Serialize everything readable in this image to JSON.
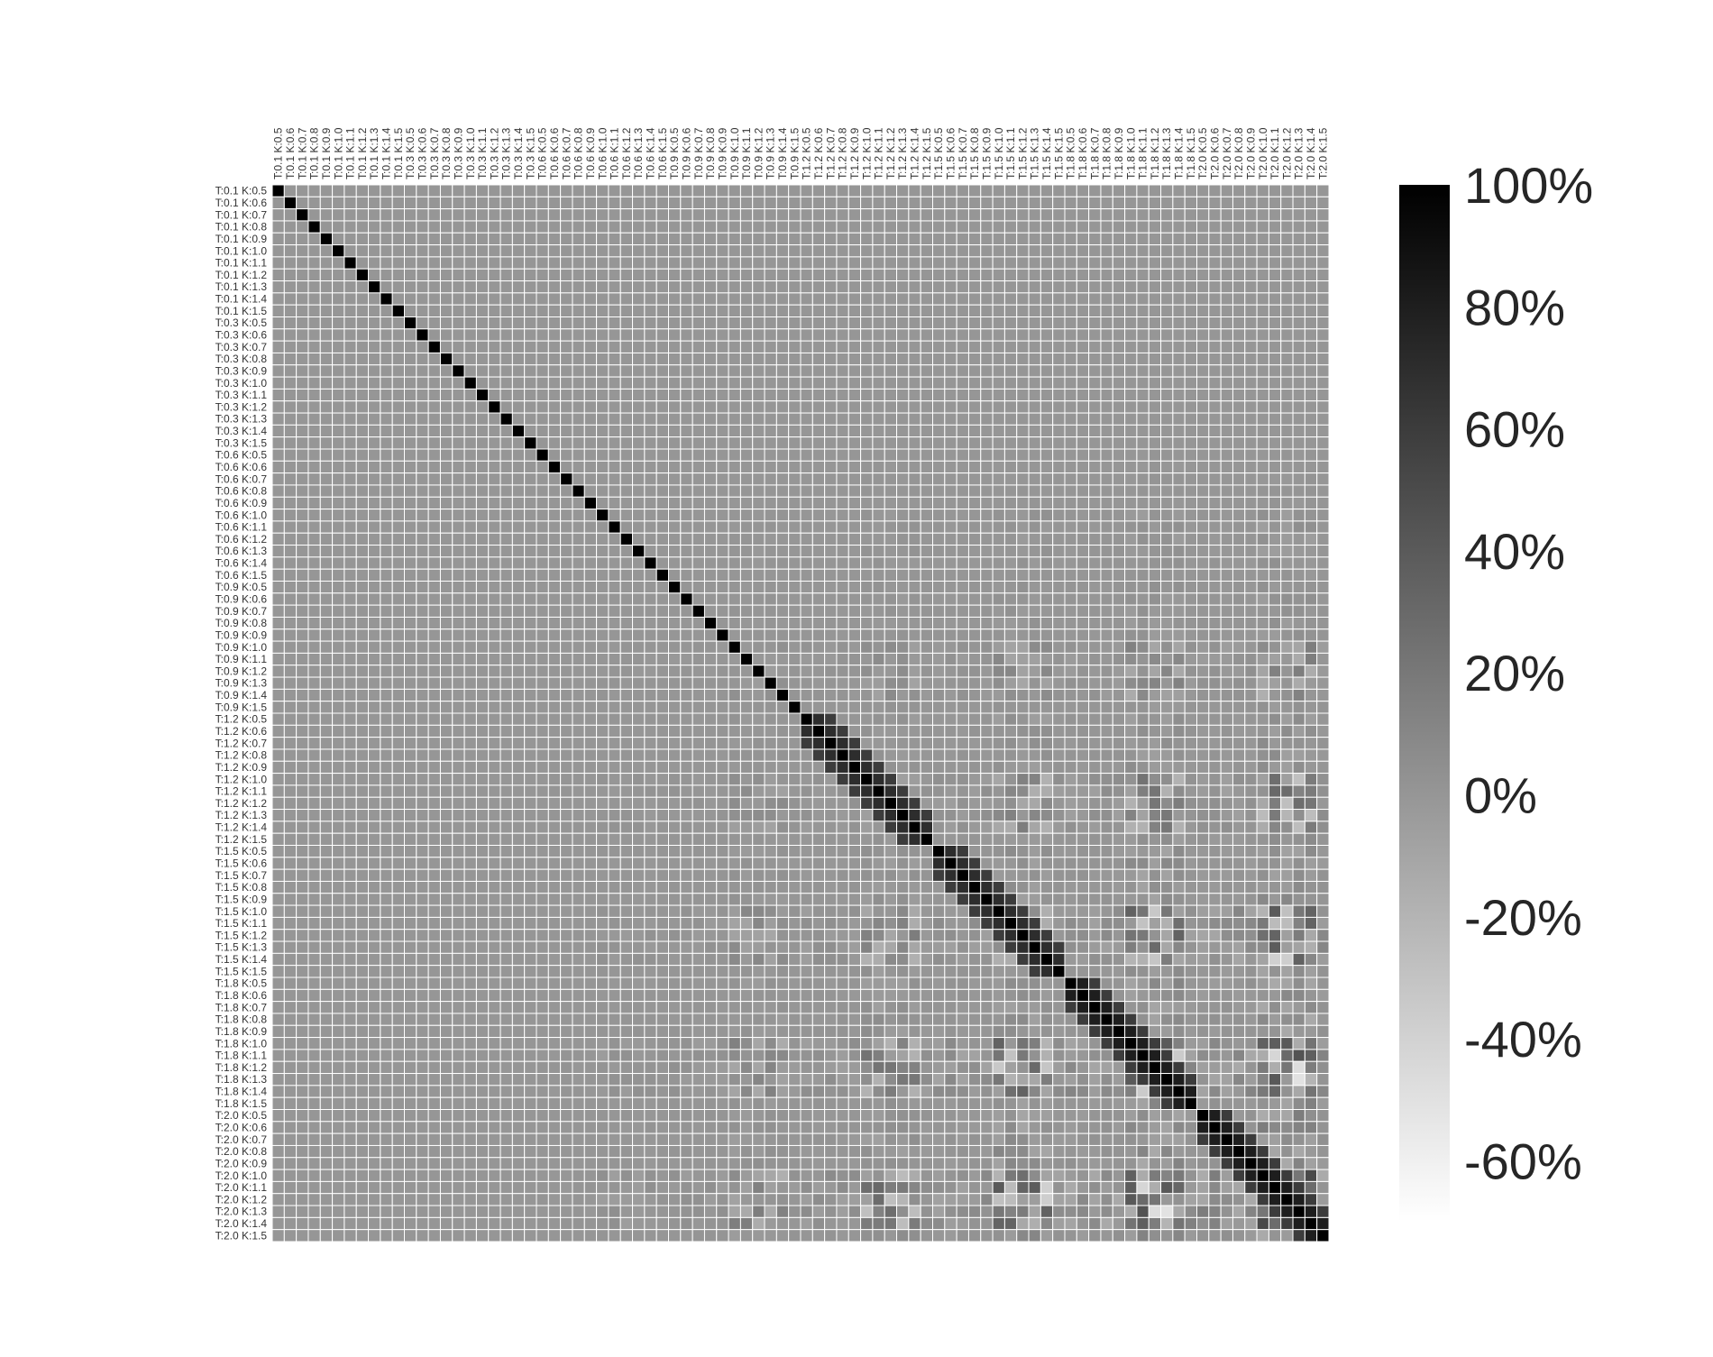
{
  "chart_data": {
    "type": "heatmap",
    "title": "",
    "xlabel": "",
    "ylabel": "",
    "T_values": [
      "0.1",
      "0.3",
      "0.6",
      "0.9",
      "1.2",
      "1.5",
      "1.8",
      "2.0"
    ],
    "K_values": [
      "0.5",
      "0.6",
      "0.7",
      "0.8",
      "0.9",
      "1.0",
      "1.1",
      "1.2",
      "1.3",
      "1.4",
      "1.5"
    ],
    "label_template": "T:{T} K:{K}",
    "row_labels_position": "left",
    "column_labels_position": "top",
    "column_labels_rotation": "vertical",
    "matrix_shape": [
      88,
      88
    ],
    "diagonal_value": 100,
    "grid_lines": true,
    "grid_line_color": "#ffffff",
    "colormap": "greys",
    "color_low": "#ffffff",
    "color_high": "#000000",
    "value_range": [
      -70,
      100
    ],
    "value_unit": "%",
    "colorbar": {
      "position": "right",
      "ticks": [
        "100%",
        "80%",
        "60%",
        "40%",
        "20%",
        "0%",
        "-20%",
        "-40%",
        "-60%"
      ],
      "tick_values": [
        100,
        80,
        60,
        40,
        20,
        0,
        -20,
        -40,
        -60
      ]
    }
  }
}
